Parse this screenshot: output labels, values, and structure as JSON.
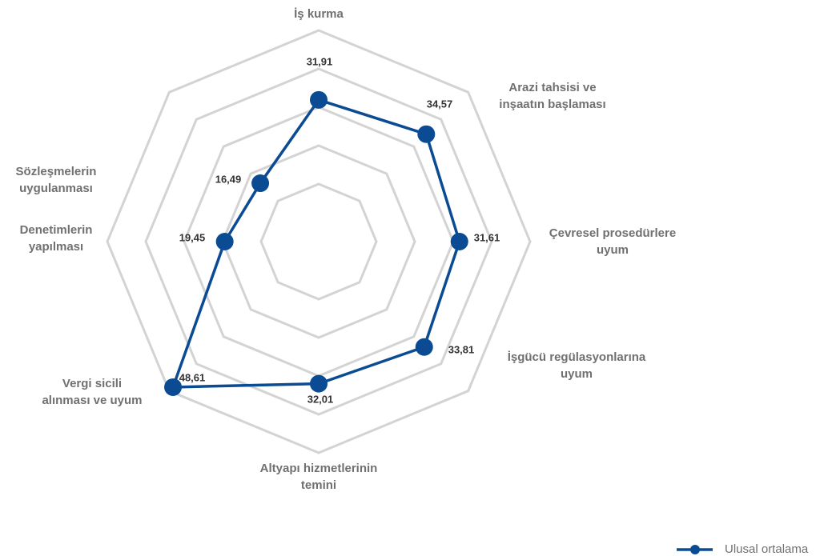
{
  "chart_data": {
    "type": "radar",
    "categories": [
      [
        "İş kurma"
      ],
      [
        "Arazi tahsisi ve",
        "inşaatın başlaması"
      ],
      [
        "Çevresel prosedürlere",
        "uyum"
      ],
      [
        "İşgücü regülasyonlarına",
        "uyum"
      ],
      [
        "Altyapı hizmetlerinin",
        "temini"
      ],
      [
        "Vergi sicili",
        "alınması ve uyum"
      ],
      [
        "Denetimlerin",
        "yapılması"
      ],
      [
        "Sözleşmelerin",
        "uygulanması"
      ]
    ],
    "series": [
      {
        "name": "Ulusal ortalama",
        "color": "#0a4b94",
        "values": [
          31.91,
          34.57,
          31.61,
          33.81,
          32.01,
          48.61,
          19.45,
          16.49
        ],
        "value_labels": [
          "31,91",
          "34,57",
          "31,61",
          "33,81",
          "32,01",
          "48,61",
          "19,45",
          "16,49"
        ]
      }
    ],
    "ylim": [
      -5,
      50
    ],
    "yticks": [
      10,
      20,
      30,
      40,
      50
    ],
    "grid": true,
    "legend": "bottom-right"
  }
}
